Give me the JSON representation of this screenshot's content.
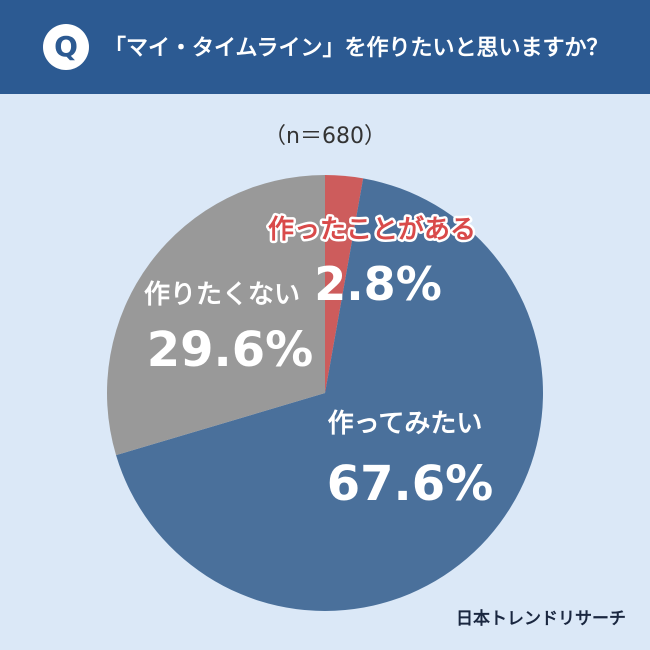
{
  "header": {
    "badge": "Q",
    "question": "「マイ・タイムライン」を作りたいと思いますか？"
  },
  "sample_note": "（n＝680）",
  "footer": {
    "brand": "日本トレンドリサーチ"
  },
  "colors": {
    "header_bg": "#2c5a92",
    "background": "#dbe8f7",
    "red": "#cd5c5c",
    "blue": "#4a709b",
    "gray": "#999999"
  },
  "chart_data": {
    "type": "pie",
    "title": "「マイ・タイムライン」を作りたいと思いますか？",
    "n_label": "（n＝680）",
    "slices": [
      {
        "label": "作ったことがある",
        "value": 2.8,
        "value_label": "2.8%",
        "color": "#cd5c5c"
      },
      {
        "label": "作ってみたい",
        "value": 67.6,
        "value_label": "67.6%",
        "color": "#4a709b"
      },
      {
        "label": "作りたくない",
        "value": 29.6,
        "value_label": "29.6%",
        "color": "#999999"
      }
    ]
  }
}
